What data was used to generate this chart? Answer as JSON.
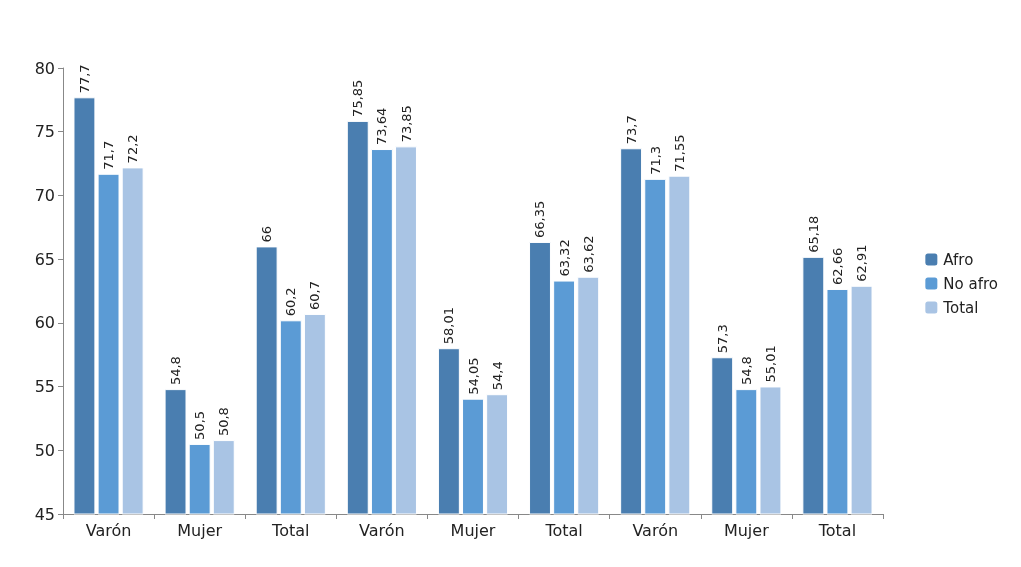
{
  "chart_data": {
    "type": "bar",
    "categories": [
      "Varón",
      "Mujer",
      "Total",
      "Varón",
      "Mujer",
      "Total",
      "Varón",
      "Mujer",
      "Total"
    ],
    "series": [
      {
        "name": "Afro",
        "color": "#4a7eb0",
        "values": [
          77.7,
          54.8,
          66,
          75.85,
          58.01,
          66.35,
          73.7,
          57.3,
          65.18
        ],
        "value_labels": [
          "77,7",
          "54,8",
          "66",
          "75,85",
          "58,01",
          "66,35",
          "73,7",
          "57,3",
          "65,18"
        ]
      },
      {
        "name": "No afro",
        "color": "#5b9bd5",
        "values": [
          71.7,
          50.5,
          60.2,
          73.64,
          54.05,
          63.32,
          71.3,
          54.8,
          62.66
        ],
        "value_labels": [
          "71,7",
          "50,5",
          "60,2",
          "73,64",
          "54,05",
          "63,32",
          "71,3",
          "54,8",
          "62,66"
        ]
      },
      {
        "name": "Total",
        "color": "#a9c4e4",
        "values": [
          72.2,
          50.8,
          60.7,
          73.85,
          54.4,
          63.62,
          71.55,
          55.01,
          62.91
        ],
        "value_labels": [
          "72,2",
          "50,8",
          "60,7",
          "73,85",
          "54,4",
          "63,62",
          "71,55",
          "55,01",
          "62,91"
        ]
      }
    ],
    "ylim": [
      45,
      80
    ],
    "yticks": [
      45,
      50,
      55,
      60,
      65,
      70,
      75,
      80
    ],
    "grid": false,
    "legend": "right"
  }
}
